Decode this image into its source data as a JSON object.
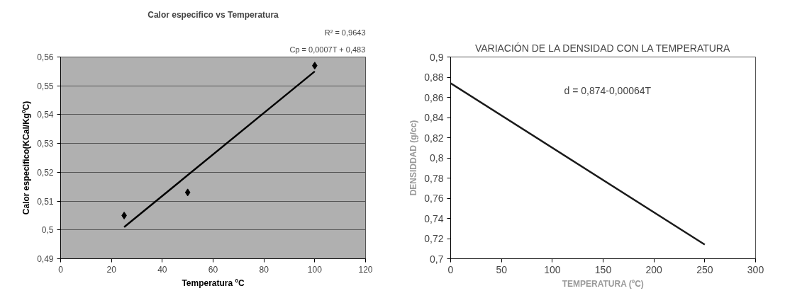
{
  "chart_data": [
    {
      "type": "scatter",
      "title": "Calor especifico vs Temperatura",
      "xlabel": "Temperatura ºC",
      "ylabel": "Calor especifico(KCal/KgºC)",
      "annotations": [
        "Cp = 0,0007T + 0,483",
        "R² = 0,9643"
      ],
      "x": [
        25,
        50,
        100
      ],
      "series": [
        {
          "type": "scatter",
          "color": "#000000",
          "marker": "diamond",
          "values": [
            0.505,
            0.513,
            0.557
          ]
        },
        {
          "type": "line",
          "color": "#000000",
          "x": [
            25,
            100
          ],
          "values": [
            0.501,
            0.555
          ]
        }
      ],
      "xlim": [
        0,
        120
      ],
      "xticks": [
        0,
        20,
        40,
        60,
        80,
        100,
        120
      ],
      "ylim": [
        0.49,
        0.56
      ],
      "yticks": [
        {
          "value": 0.49,
          "label": "0,49"
        },
        {
          "value": 0.5,
          "label": "0,5"
        },
        {
          "value": 0.51,
          "label": "0,51"
        },
        {
          "value": 0.52,
          "label": "0,52"
        },
        {
          "value": 0.53,
          "label": "0,53"
        },
        {
          "value": 0.54,
          "label": "0,54"
        },
        {
          "value": 0.55,
          "label": "0,55"
        },
        {
          "value": 0.56,
          "label": "0,56"
        }
      ],
      "grid": "y"
    },
    {
      "type": "line",
      "title": "VARIACIÓN DE LA DENSIDAD CON LA TEMPERATURA",
      "xlabel": "TEMPERATURA (ºC)",
      "ylabel": "DENSIDDAD (g/cc)",
      "annotations": [
        "d = 0,874-0,00064T"
      ],
      "x": [
        0,
        250
      ],
      "series": [
        {
          "color": "#1a1a1a",
          "values": [
            0.874,
            0.714
          ]
        }
      ],
      "xlim": [
        0,
        300
      ],
      "xticks": [
        0,
        50,
        100,
        150,
        200,
        250,
        300
      ],
      "ylim": [
        0.7,
        0.9
      ],
      "yticks": [
        {
          "value": 0.7,
          "label": "0,7"
        },
        {
          "value": 0.72,
          "label": "0,72"
        },
        {
          "value": 0.74,
          "label": "0,74"
        },
        {
          "value": 0.76,
          "label": "0,76"
        },
        {
          "value": 0.78,
          "label": "0,78"
        },
        {
          "value": 0.8,
          "label": "0,8"
        },
        {
          "value": 0.82,
          "label": "0,82"
        },
        {
          "value": 0.84,
          "label": "0,84"
        },
        {
          "value": 0.86,
          "label": "0,86"
        },
        {
          "value": 0.88,
          "label": "0,88"
        },
        {
          "value": 0.9,
          "label": "0,9"
        }
      ],
      "grid": false,
      "marker": "none"
    }
  ]
}
